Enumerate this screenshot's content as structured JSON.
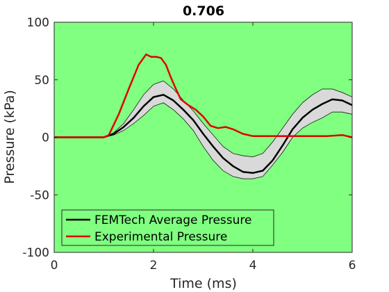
{
  "chart_data": {
    "type": "line",
    "title": "0.706",
    "xlabel": "Time (ms)",
    "ylabel": "Pressure (kPa)",
    "xlim": [
      0,
      6
    ],
    "ylim": [
      -100,
      100
    ],
    "xticks": [
      0,
      2,
      4,
      6
    ],
    "yticks": [
      -100,
      -50,
      0,
      50,
      100
    ],
    "xtick_labels": [
      "0",
      "2",
      "4",
      "6"
    ],
    "ytick_labels": [
      "-100",
      "-50",
      "0",
      "50",
      "100"
    ],
    "grid": false,
    "legend_position": "bottom-left",
    "background_color": "#80ff80",
    "series": [
      {
        "name": "FEMTech Average Pressure",
        "color": "#000000",
        "x": [
          0,
          0.5,
          1.0,
          1.2,
          1.4,
          1.6,
          1.8,
          2.0,
          2.2,
          2.4,
          2.6,
          2.8,
          3.0,
          3.2,
          3.4,
          3.6,
          3.8,
          4.0,
          4.2,
          4.4,
          4.6,
          4.8,
          5.0,
          5.2,
          5.4,
          5.6,
          5.8,
          6.0
        ],
        "y": [
          0,
          0,
          0,
          3,
          9,
          17,
          27,
          35,
          37,
          32,
          24,
          15,
          3,
          -8,
          -18,
          -25,
          -30,
          -31,
          -29,
          -20,
          -7,
          7,
          17,
          24,
          29,
          33,
          32,
          28
        ],
        "upper": [
          0,
          0,
          0,
          4,
          12,
          24,
          37,
          46,
          49,
          42,
          32,
          23,
          12,
          2,
          -8,
          -14,
          -16,
          -17,
          -14,
          -4,
          8,
          20,
          30,
          37,
          42,
          42,
          39,
          35
        ],
        "lower": [
          0,
          0,
          0,
          2,
          6,
          12,
          19,
          27,
          30,
          24,
          16,
          6,
          -8,
          -20,
          -29,
          -34,
          -36,
          -36,
          -34,
          -24,
          -13,
          0,
          8,
          13,
          17,
          22,
          22,
          20
        ]
      },
      {
        "name": "Experimental Pressure",
        "color": "#e00000",
        "x": [
          0,
          0.5,
          1.0,
          1.1,
          1.3,
          1.5,
          1.7,
          1.85,
          1.95,
          2.05,
          2.15,
          2.25,
          2.35,
          2.45,
          2.55,
          2.7,
          2.85,
          3.0,
          3.15,
          3.3,
          3.45,
          3.6,
          3.8,
          4.0,
          4.2,
          4.4,
          4.6,
          4.8,
          5.0,
          5.5,
          5.8,
          6.0
        ],
        "y": [
          0,
          0,
          0,
          2,
          20,
          42,
          63,
          72,
          70,
          70,
          69,
          63,
          52,
          42,
          33,
          28,
          24,
          18,
          10,
          8,
          9,
          7,
          3,
          1,
          1,
          1,
          1,
          1,
          1,
          1,
          2,
          0
        ]
      }
    ]
  }
}
